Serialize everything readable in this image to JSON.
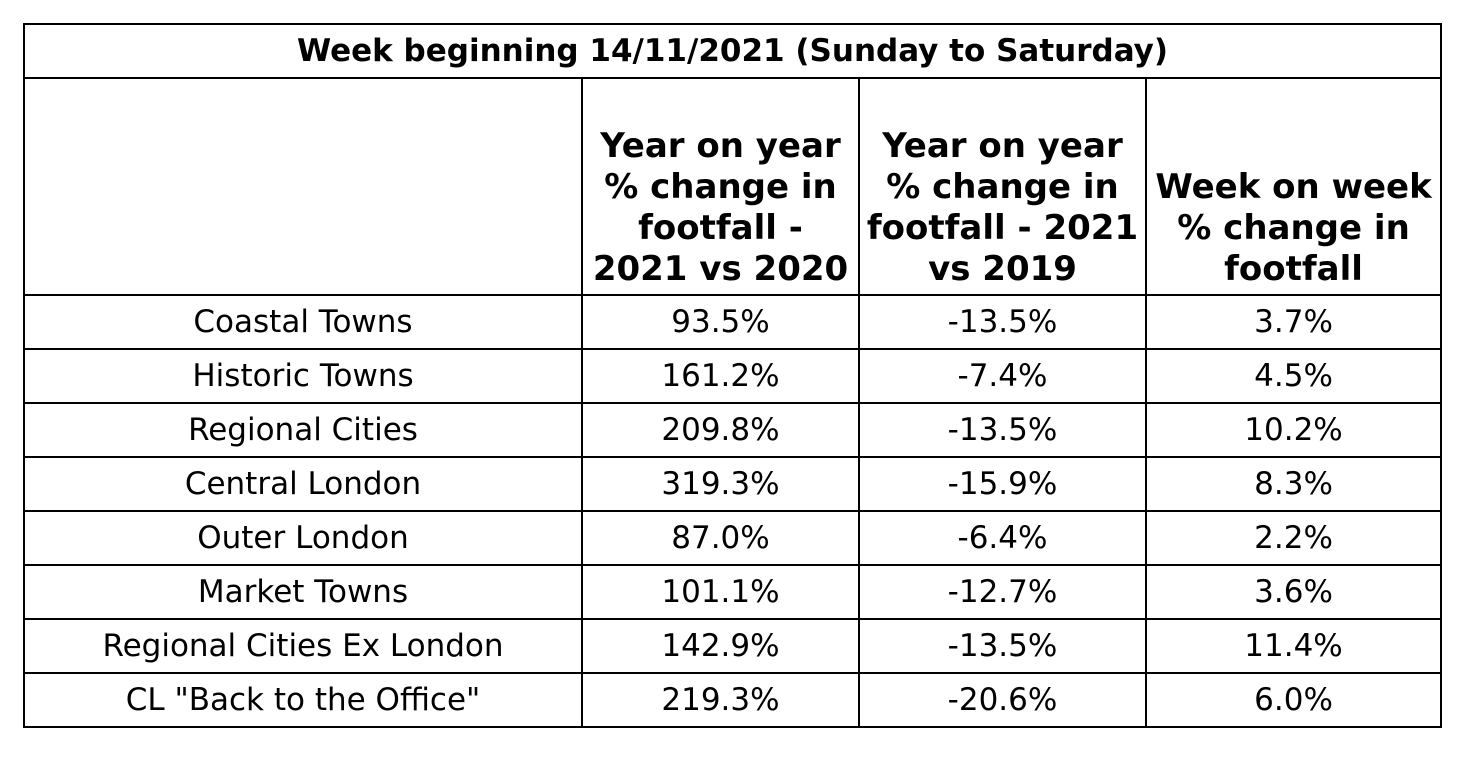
{
  "chart_data": {
    "type": "table",
    "title": "Week beginning 14/11/2021 (Sunday to Saturday)",
    "columns": [
      "",
      "Year on year\n% change in\nfootfall -\n2021 vs 2020",
      "Year on year\n% change in\nfootfall - 2021\nvs 2019",
      "Week on week\n% change in\nfootfall"
    ],
    "rows": [
      [
        "Coastal Towns",
        "93.5%",
        "-13.5%",
        "3.7%"
      ],
      [
        "Historic Towns",
        "161.2%",
        "-7.4%",
        "4.5%"
      ],
      [
        "Regional Cities",
        "209.8%",
        "-13.5%",
        "10.2%"
      ],
      [
        "Central London",
        "319.3%",
        "-15.9%",
        "8.3%"
      ],
      [
        "Outer London",
        "87.0%",
        "-6.4%",
        "2.2%"
      ],
      [
        "Market Towns",
        "101.1%",
        "-12.7%",
        "3.6%"
      ],
      [
        "Regional Cities Ex London",
        "142.9%",
        "-13.5%",
        "11.4%"
      ],
      [
        "CL \"Back to the Office\"",
        "219.3%",
        "-20.6%",
        "6.0%"
      ]
    ]
  }
}
